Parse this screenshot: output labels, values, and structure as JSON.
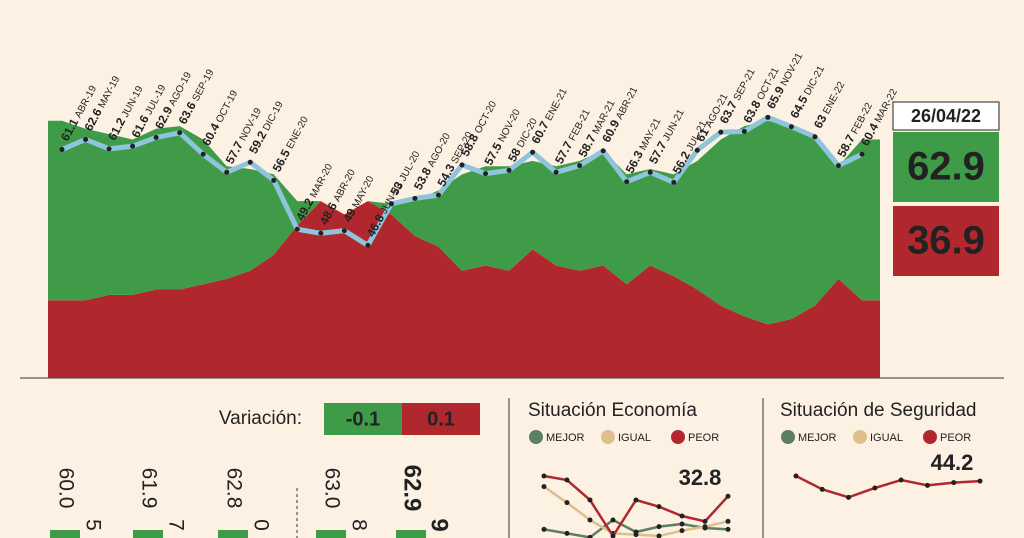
{
  "chart_data": [
    {
      "type": "approval",
      "categories": [
        "ABR-19",
        "MAY-19",
        "JUN-19",
        "JUL-19",
        "AGO-19",
        "SEP-19",
        "OCT-19",
        "NOV-19",
        "DIC-19",
        "ENE-20",
        "MAR-20",
        "ABR-20",
        "MAY-20",
        "JUN-20",
        "JUL-20",
        "AGO-20",
        "SEP-20",
        "OCT-20",
        "NOV-20",
        "DIC-20",
        "ENE-21",
        "FEB-21",
        "MAR-21",
        "ABR-21",
        "MAY-21",
        "JUN-21",
        "JUL-21",
        "AGO-21",
        "SEP-21",
        "OCT-21",
        "NOV-21",
        "DIC-21",
        "ENE-22",
        "FEB-22",
        "MAR-22"
      ],
      "line": {
        "color": "#8ec5dc",
        "axis": "y2",
        "values": [
          61.1,
          62.6,
          61.2,
          61.6,
          62.9,
          63.6,
          60.4,
          57.7,
          59.2,
          56.5,
          49.2,
          48.6,
          49.0,
          46.8,
          53.0,
          53.8,
          54.3,
          58.8,
          57.5,
          58.0,
          60.7,
          57.7,
          58.7,
          60.9,
          56.3,
          57.7,
          56.2,
          61.0,
          63.7,
          63.8,
          65.9,
          64.5,
          63.0,
          58.7,
          60.4
        ]
      },
      "series": [
        {
          "color": "#b0282d",
          "values": [
            29,
            29,
            31,
            31,
            33,
            33,
            35,
            37,
            40,
            46,
            57,
            66,
            61,
            66,
            61,
            53,
            49,
            40,
            42,
            40,
            48,
            42,
            40,
            42,
            35,
            42,
            38,
            33,
            27,
            23,
            20,
            22,
            27,
            37,
            29
          ]
        },
        {
          "color": "#3f9b47",
          "values": [
            67,
            64,
            60,
            58,
            60,
            61,
            54,
            42,
            38,
            30,
            9,
            0,
            0,
            0,
            4,
            13,
            21,
            36,
            37,
            39,
            33,
            37,
            41,
            43,
            41,
            36,
            38,
            48,
            62,
            71,
            76,
            72,
            62,
            42,
            60
          ]
        }
      ],
      "ylim": [
        0,
        100
      ],
      "y2lim": [
        27,
        67
      ],
      "latest": {
        "date": "26/04/22",
        "approve": {
          "value": 62.9,
          "color": "#3f9b47"
        },
        "disapprove": {
          "value": 36.9,
          "color": "#b0282d"
        }
      }
    },
    {
      "type": "variation",
      "label": "Variación:",
      "values": [
        -0.1,
        0.1
      ],
      "colors": [
        "#3f9b47",
        "#b0282d"
      ]
    },
    {
      "type": "stubs",
      "values": [
        60.0,
        61.9,
        62.8,
        63.0,
        62.9
      ],
      "value_labels": [
        "60.0",
        "61.9",
        "62.8",
        "63.0",
        "62.9"
      ],
      "second_labels": [
        "5",
        "7",
        "0",
        "8",
        "9"
      ],
      "color": "#3f9b47"
    },
    {
      "type": "line",
      "title": "Situación Economía",
      "ylim": [
        0,
        60
      ],
      "series": [
        {
          "name": "MEJOR",
          "color": "#5b7f5f",
          "values": [
            8,
            5,
            2,
            15,
            6,
            10,
            12,
            9,
            8
          ]
        },
        {
          "name": "IGUAL",
          "color": "#dcc08c",
          "values": [
            40,
            28,
            15,
            5,
            4,
            3,
            7,
            10,
            14
          ]
        },
        {
          "name": "PEOR",
          "color": "#b0282d",
          "values": [
            48,
            45,
            30,
            3,
            30,
            25,
            18,
            14,
            32.8
          ]
        }
      ]
    },
    {
      "type": "line",
      "title": "Situación de Seguridad",
      "ylim": [
        0,
        60
      ],
      "series": [
        {
          "name": "MEJOR",
          "color": "#5b7f5f",
          "values": []
        },
        {
          "name": "IGUAL",
          "color": "#dcc08c",
          "values": []
        },
        {
          "name": "PEOR",
          "color": "#b0282d",
          "values": [
            48,
            38,
            32,
            39,
            45,
            41,
            43,
            44.2
          ]
        }
      ]
    }
  ]
}
